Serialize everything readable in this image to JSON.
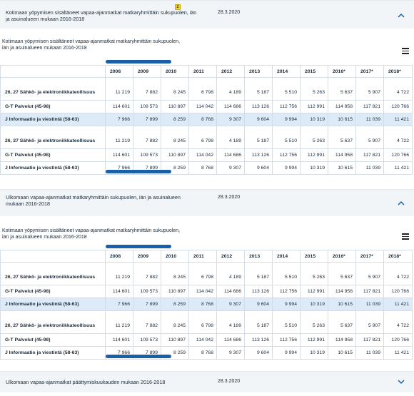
{
  "sections": [
    {
      "title": "Kotimaan yöpymisen sisältäneet vapaa-ajanmatkat matkaryhmittäin sukupuolen, iän ja asuinalueen mukaan 2016-2018",
      "date": "28.3.2020",
      "badge": "2",
      "expanded": true
    },
    {
      "title": "Ulkomaan vapaa-ajanmatkat matkaryhmittäin sukupuolen, iän ja asuinalueen mukaan 2016-2018",
      "date": "28.3.2020",
      "expanded": true
    },
    {
      "title": "Ulkomaan vapaa-ajanmatkat päättymiskuukauden mukaan 2016-2018",
      "date": "28.3.2020",
      "expanded": false
    }
  ],
  "panels": [
    {
      "title": "Kotimaan yöpymisen sisältäneet vapaa-ajanmatkat matkaryhmittäin sukupuolen, iän ja asuinalueen mukaan 2016-2018"
    },
    {
      "title": "Kotimaan yöpymisen sisältäneet vapaa-ajanmatkat matkaryhmittäin sukupuolen, iän ja asuinalueen mukaan 2016-2018"
    }
  ],
  "table": {
    "columns": [
      "2008",
      "2009",
      "2010",
      "2011",
      "2012",
      "2013",
      "2014",
      "2015",
      "2016*",
      "2017*",
      "2018*"
    ],
    "rows": [
      {
        "label": "26, 27 Sähkö- ja elektroniikkateollisuus",
        "values": [
          "11 219",
          "7 882",
          "8 245",
          "6 798",
          "4 189",
          "5 187",
          "5 510",
          "5 263",
          "5 637",
          "5 907",
          "4 722"
        ],
        "highlight": false,
        "tall": true
      },
      {
        "label": "G-T Palvelut (45-98)",
        "values": [
          "114 601",
          "109 573",
          "110 897",
          "114 042",
          "114 686",
          "113 126",
          "112 756",
          "112 991",
          "114 958",
          "117 821",
          "120 766"
        ],
        "highlight": false,
        "tall": false
      },
      {
        "label": "J Informaatio ja viestintä (58-63)",
        "values": [
          "7 966",
          "7 899",
          "8 259",
          "8 768",
          "9 307",
          "9 604",
          "9 994",
          "10 319",
          "10 615",
          "11 039",
          "11 421"
        ],
        "highlight": true,
        "tall": false
      },
      {
        "label": "26, 27 Sähkö- ja elektroniikkateollisuus",
        "values": [
          "11 219",
          "7 882",
          "8 245",
          "6 798",
          "4 189",
          "5 187",
          "5 510",
          "5 263",
          "5 637",
          "5 907",
          "4 722"
        ],
        "highlight": false,
        "tall": true
      },
      {
        "label": "G-T Palvelut (45-98)",
        "values": [
          "114 601",
          "109 573",
          "110 897",
          "114 042",
          "114 686",
          "113 126",
          "112 756",
          "112 991",
          "114 958",
          "117 821",
          "120 766"
        ],
        "highlight": false,
        "tall": false
      },
      {
        "label": "J Informaatio ja viestintä (58-63)",
        "values": [
          "7 966",
          "7 899",
          "8 259",
          "8 768",
          "9 307",
          "9 604",
          "9 994",
          "10 319",
          "10 615",
          "11 039",
          "11 421"
        ],
        "highlight": false,
        "tall": false
      }
    ]
  },
  "icons": {
    "expand": "chevron-up-icon",
    "collapse": "chevron-down-icon",
    "menu": "hamburger-menu-icon",
    "badge": "new-badge-icon"
  },
  "colors": {
    "accent": "#1a5fa8",
    "highlight_row": "#dcebf7",
    "header_bg": "#f1f5f8",
    "badge": "#f6d23a"
  }
}
